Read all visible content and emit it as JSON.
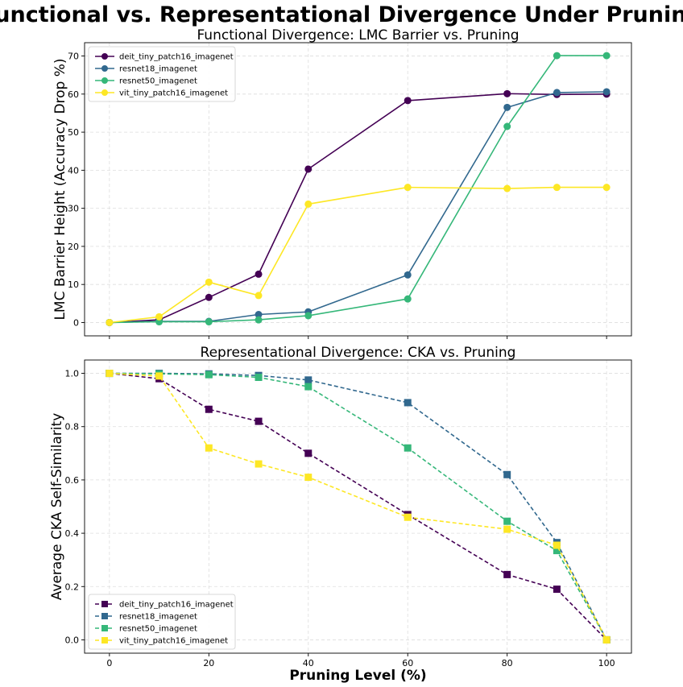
{
  "figure": {
    "title": "Functional vs. Representational Divergence Under Pruning"
  },
  "chart_data": [
    {
      "type": "line",
      "title": "Functional Divergence: LMC Barrier vs. Pruning",
      "xlabel": "",
      "ylabel": "LMC Barrier Height (Accuracy Drop %)",
      "xlim": [
        -5,
        105
      ],
      "ylim": [
        -3.5,
        73.5
      ],
      "xticks": [
        0,
        20,
        40,
        60,
        80,
        100
      ],
      "xtick_labels_shown": false,
      "yticks": [
        0,
        10,
        20,
        30,
        40,
        50,
        60,
        70
      ],
      "ytick_labels": [
        "0",
        "10",
        "20",
        "30",
        "40",
        "50",
        "60",
        "70"
      ],
      "grid": true,
      "legend": "top-left",
      "marker": "circle",
      "linestyle": "solid",
      "x": [
        0,
        10,
        20,
        30,
        40,
        60,
        80,
        90,
        100
      ],
      "series": [
        {
          "name": "deit_tiny_patch16_imagenet",
          "color": "#440154",
          "values": [
            0,
            0.7,
            6.6,
            12.7,
            40.3,
            58.3,
            60.1,
            59.9,
            60.0
          ]
        },
        {
          "name": "resnet18_imagenet",
          "color": "#31688e",
          "values": [
            0,
            0.3,
            0.3,
            2.1,
            2.8,
            12.5,
            56.5,
            60.4,
            60.6
          ]
        },
        {
          "name": "resnet50_imagenet",
          "color": "#35b779",
          "values": [
            0,
            0.2,
            0.2,
            0.7,
            1.8,
            6.2,
            51.5,
            70.1,
            70.1
          ]
        },
        {
          "name": "vit_tiny_patch16_imagenet",
          "color": "#fde725",
          "values": [
            0,
            1.5,
            10.6,
            7.1,
            31.1,
            35.5,
            35.2,
            35.5,
            35.5
          ]
        }
      ]
    },
    {
      "type": "line",
      "title": "Representational Divergence: CKA vs. Pruning",
      "xlabel": "Pruning Level (%)",
      "ylabel": "Average CKA Self-Similarity",
      "xlim": [
        -5,
        105
      ],
      "ylim": [
        -0.05,
        1.05
      ],
      "xticks": [
        0,
        20,
        40,
        60,
        80,
        100
      ],
      "xtick_labels": [
        "0",
        "20",
        "40",
        "60",
        "80",
        "100"
      ],
      "yticks": [
        0.0,
        0.2,
        0.4,
        0.6,
        0.8,
        1.0
      ],
      "ytick_labels": [
        "0.0",
        "0.2",
        "0.4",
        "0.6",
        "0.8",
        "1.0"
      ],
      "grid": true,
      "legend": "bottom-left",
      "marker": "square",
      "linestyle": "dashed",
      "x": [
        0,
        10,
        20,
        30,
        40,
        60,
        80,
        90,
        100
      ],
      "series": [
        {
          "name": "deit_tiny_patch16_imagenet",
          "color": "#440154",
          "values": [
            1.0,
            0.98,
            0.865,
            0.82,
            0.7,
            0.47,
            0.245,
            0.19,
            0.0
          ]
        },
        {
          "name": "resnet18_imagenet",
          "color": "#31688e",
          "values": [
            1.0,
            1.0,
            0.998,
            0.992,
            0.975,
            0.89,
            0.62,
            0.365,
            0.0
          ]
        },
        {
          "name": "resnet50_imagenet",
          "color": "#35b779",
          "values": [
            1.0,
            0.998,
            0.995,
            0.985,
            0.95,
            0.72,
            0.445,
            0.335,
            0.0
          ]
        },
        {
          "name": "vit_tiny_patch16_imagenet",
          "color": "#fde725",
          "values": [
            1.0,
            0.99,
            0.72,
            0.66,
            0.61,
            0.46,
            0.415,
            0.355,
            0.0
          ]
        }
      ]
    }
  ]
}
